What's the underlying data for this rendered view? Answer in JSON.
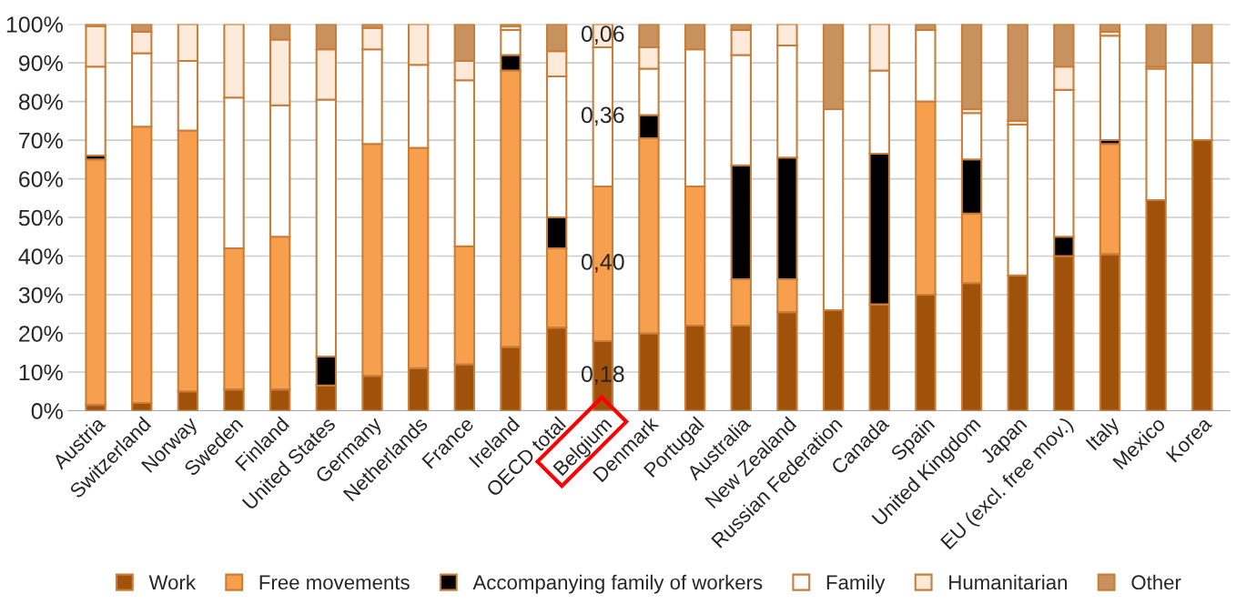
{
  "chart_data": {
    "type": "bar",
    "stacked": true,
    "categories": [
      "Austria",
      "Switzerland",
      "Norway",
      "Sweden",
      "Finland",
      "United States",
      "Germany",
      "Netherlands",
      "France",
      "Ireland",
      "OECD total",
      "Belgium",
      "Denmark",
      "Portugal",
      "Australia",
      "New Zealand",
      "Russian Federation",
      "Canada",
      "Spain",
      "United Kingdom",
      "Japan",
      "EU (excl. free mov.)",
      "Italy",
      "Mexico",
      "Korea"
    ],
    "series": [
      {
        "name": "Work",
        "color": "#a0520a",
        "values": [
          0.015,
          0.02,
          0.05,
          0.055,
          0.055,
          0.065,
          0.09,
          0.11,
          0.12,
          0.165,
          0.215,
          0.18,
          0.2,
          0.22,
          0.22,
          0.255,
          0.26,
          0.275,
          0.3,
          0.33,
          0.35,
          0.4,
          0.405,
          0.545,
          0.7
        ],
        "value_labels": [
          null,
          null,
          null,
          null,
          null,
          null,
          null,
          null,
          null,
          null,
          null,
          "0,18",
          null,
          null,
          null,
          null,
          null,
          null,
          null,
          null,
          null,
          null,
          null,
          null,
          null
        ]
      },
      {
        "name": "Free movements",
        "color": "#f79f4d",
        "values": [
          0.635,
          0.715,
          0.675,
          0.365,
          0.395,
          null,
          0.6,
          0.57,
          0.305,
          0.715,
          0.205,
          0.4,
          0.505,
          0.36,
          0.12,
          0.085,
          null,
          null,
          0.5,
          0.18,
          null,
          null,
          0.285,
          null,
          null
        ],
        "value_labels": [
          null,
          null,
          null,
          null,
          null,
          null,
          null,
          null,
          null,
          null,
          null,
          "0,40",
          null,
          null,
          null,
          null,
          null,
          null,
          null,
          null,
          null,
          null,
          null,
          null,
          null
        ]
      },
      {
        "name": "Accompanying family of workers",
        "color": "#000000",
        "values": [
          0.01,
          null,
          null,
          null,
          null,
          0.075,
          null,
          null,
          null,
          0.04,
          0.08,
          null,
          0.06,
          null,
          0.295,
          0.315,
          null,
          0.39,
          null,
          0.14,
          null,
          0.05,
          0.01,
          null,
          null
        ]
      },
      {
        "name": "Family",
        "color": "#ffffff",
        "values": [
          0.23,
          0.19,
          0.18,
          0.39,
          0.34,
          0.665,
          0.245,
          0.215,
          0.43,
          0.065,
          0.365,
          0.36,
          0.12,
          0.355,
          0.285,
          0.29,
          0.52,
          0.215,
          0.185,
          0.12,
          0.39,
          0.38,
          0.27,
          0.34,
          0.2
        ],
        "value_labels": [
          null,
          null,
          null,
          null,
          null,
          null,
          null,
          null,
          null,
          null,
          null,
          "0,36",
          null,
          null,
          null,
          null,
          null,
          null,
          null,
          null,
          null,
          null,
          null,
          null,
          null
        ]
      },
      {
        "name": "Humanitarian",
        "color": "#fdeadb",
        "values": [
          0.105,
          0.055,
          0.095,
          0.19,
          0.17,
          0.13,
          0.055,
          0.105,
          0.05,
          0.01,
          0.065,
          0.06,
          0.055,
          null,
          0.065,
          0.055,
          null,
          0.12,
          null,
          0.01,
          0.01,
          0.06,
          0.01,
          0.005,
          null
        ],
        "value_labels": [
          null,
          null,
          null,
          null,
          null,
          null,
          null,
          null,
          null,
          null,
          null,
          "0,06",
          null,
          null,
          null,
          null,
          null,
          null,
          null,
          null,
          null,
          null,
          null,
          null,
          null
        ]
      },
      {
        "name": "Other",
        "color": "#c8925e",
        "values": [
          0.005,
          0.02,
          null,
          null,
          0.04,
          0.065,
          0.01,
          null,
          0.095,
          0.005,
          0.07,
          null,
          0.06,
          0.065,
          0.015,
          null,
          0.22,
          null,
          0.015,
          0.22,
          0.25,
          0.11,
          0.02,
          0.11,
          0.1
        ]
      }
    ],
    "ylim": [
      0,
      1
    ],
    "yticks": [
      {
        "value": 0,
        "label": "0%"
      },
      {
        "value": 0.1,
        "label": "10%"
      },
      {
        "value": 0.2,
        "label": "20%"
      },
      {
        "value": 0.3,
        "label": "30%"
      },
      {
        "value": 0.4,
        "label": "40%"
      },
      {
        "value": 0.5,
        "label": "50%"
      },
      {
        "value": 0.6,
        "label": "60%"
      },
      {
        "value": 0.7,
        "label": "70%"
      },
      {
        "value": 0.8,
        "label": "80%"
      },
      {
        "value": 0.9,
        "label": "90%"
      },
      {
        "value": 1,
        "label": "100%"
      }
    ],
    "grid": "y",
    "legend": "bottom"
  }
}
